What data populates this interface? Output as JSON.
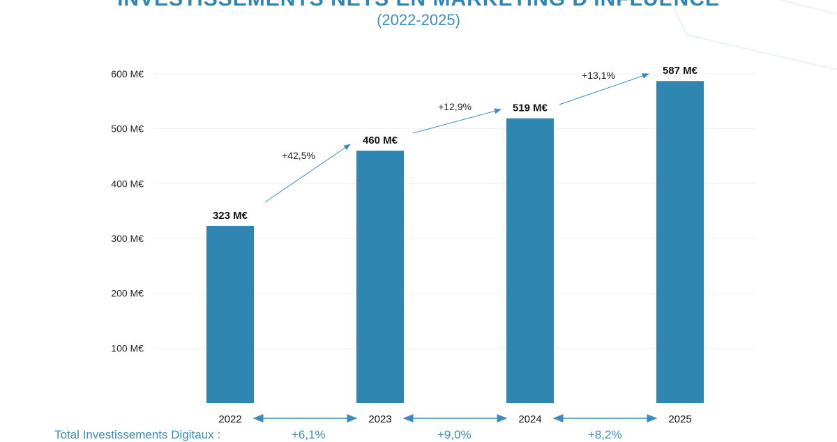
{
  "chart_data": {
    "type": "bar",
    "title": "INVESTISSEMENTS NETS EN MARKETING D'INFLUENCE",
    "subtitle": "(2022-2025)",
    "categories": [
      "2022",
      "2023",
      "2024",
      "2025"
    ],
    "values": [
      323,
      460,
      519,
      587
    ],
    "data_labels": [
      "323 M€",
      "460 M€",
      "519 M€",
      "587 M€"
    ],
    "ylim": [
      0,
      600
    ],
    "yticks": [
      100,
      200,
      300,
      400,
      500,
      600
    ],
    "ytick_labels": [
      "100 M€",
      "200 M€",
      "300 M€",
      "400 M€",
      "500 M€",
      "600 M€"
    ],
    "grid": true,
    "bar_color": "#2e86b1",
    "growth_labels": [
      "+42,5%",
      "+12,9%",
      "+13,1%"
    ],
    "digital_total": {
      "label": "Total Investissements Digitaux :",
      "values": [
        "+6,1%",
        "+9,0%",
        "+8,2%"
      ]
    }
  }
}
